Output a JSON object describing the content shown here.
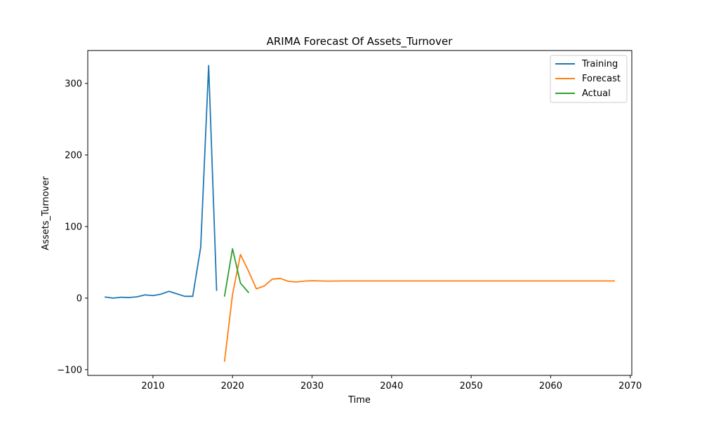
{
  "chart_data": {
    "type": "line",
    "title": "ARIMA Forecast Of Assets_Turnover",
    "xlabel": "Time",
    "ylabel": "Assets_Turnover",
    "xlim": [
      2001.8,
      2070.2
    ],
    "ylim": [
      -108,
      346
    ],
    "xticks": [
      2010,
      2020,
      2030,
      2040,
      2050,
      2060,
      2070
    ],
    "yticks": [
      -100,
      0,
      100,
      200,
      300
    ],
    "grid": false,
    "legend_position": "top-right",
    "series": [
      {
        "name": "Training",
        "color": "#1f77b4",
        "x": [
          2004,
          2005,
          2006,
          2007,
          2008,
          2009,
          2010,
          2011,
          2012,
          2013,
          2014,
          2015,
          2016,
          2017,
          2018
        ],
        "y": [
          1.5,
          0,
          1.2,
          0.8,
          1.8,
          4.5,
          3.5,
          5.5,
          9.5,
          6,
          2.5,
          2.5,
          71,
          325,
          11
        ]
      },
      {
        "name": "Forecast",
        "color": "#ff7f0e",
        "x": [
          2019,
          2020,
          2021,
          2022,
          2023,
          2024,
          2025,
          2026,
          2027,
          2028,
          2029,
          2030,
          2031,
          2032,
          2033,
          2034,
          2035,
          2036,
          2037,
          2038,
          2039,
          2040,
          2041,
          2042,
          2043,
          2044,
          2045,
          2046,
          2047,
          2048,
          2049,
          2050,
          2051,
          2052,
          2053,
          2054,
          2055,
          2056,
          2057,
          2058,
          2059,
          2060,
          2061,
          2062,
          2063,
          2064,
          2065,
          2066,
          2067,
          2068
        ],
        "y": [
          -88,
          5,
          61,
          38,
          13,
          17,
          26.5,
          27.5,
          23.5,
          22.5,
          23.8,
          24.3,
          24,
          23.8,
          23.9,
          24,
          24,
          24,
          24,
          24,
          24,
          24,
          24,
          24,
          24,
          24,
          24,
          24,
          24,
          24,
          24,
          24,
          24,
          24,
          24,
          24,
          24,
          24,
          24,
          24,
          24,
          24,
          24,
          24,
          24,
          24,
          24,
          24,
          24,
          24
        ]
      },
      {
        "name": "Actual",
        "color": "#2ca02c",
        "x": [
          2019,
          2020,
          2021,
          2022
        ],
        "y": [
          3,
          69,
          21,
          8
        ]
      }
    ]
  }
}
